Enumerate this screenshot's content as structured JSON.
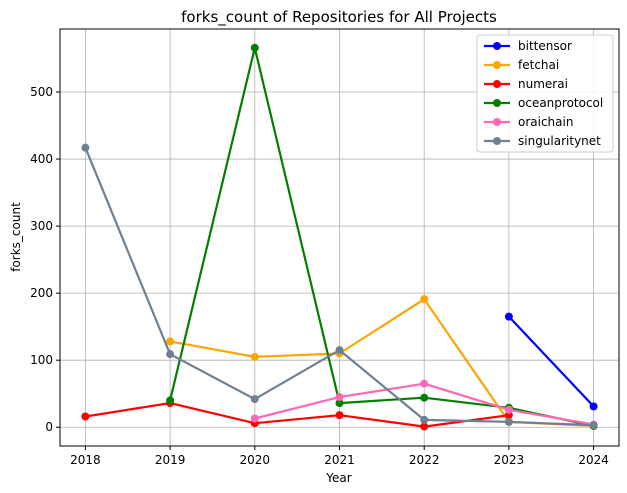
{
  "chart_data": {
    "type": "line",
    "title": "forks_count of Repositories for All Projects",
    "xlabel": "Year",
    "ylabel": "forks_count",
    "x": [
      2018,
      2019,
      2020,
      2021,
      2022,
      2023,
      2024
    ],
    "x_ticks": [
      "2018",
      "2019",
      "2020",
      "2021",
      "2022",
      "2023",
      "2024"
    ],
    "y_ticks": [
      "0",
      "100",
      "200",
      "300",
      "400",
      "500"
    ],
    "xlim": [
      2017.7,
      2024.3
    ],
    "ylim": [
      -28,
      594
    ],
    "grid": true,
    "legend_position": "top-right",
    "series": [
      {
        "name": "bittensor",
        "color": "#0000ff",
        "values": [
          null,
          null,
          null,
          null,
          null,
          165,
          31
        ]
      },
      {
        "name": "fetchai",
        "color": "#ffa500",
        "values": [
          null,
          128,
          105,
          110,
          191,
          8,
          2
        ]
      },
      {
        "name": "numerai",
        "color": "#ff0000",
        "values": [
          16,
          36,
          6,
          18,
          1,
          18,
          null
        ]
      },
      {
        "name": "oceanprotocol",
        "color": "#008000",
        "values": [
          null,
          40,
          566,
          36,
          44,
          29,
          2
        ]
      },
      {
        "name": "oraichain",
        "color": "#ff69b4",
        "values": [
          null,
          null,
          13,
          45,
          65,
          26,
          4
        ]
      },
      {
        "name": "singularitynet",
        "color": "#708090",
        "values": [
          417,
          109,
          42,
          115,
          11,
          8,
          3
        ]
      }
    ]
  }
}
